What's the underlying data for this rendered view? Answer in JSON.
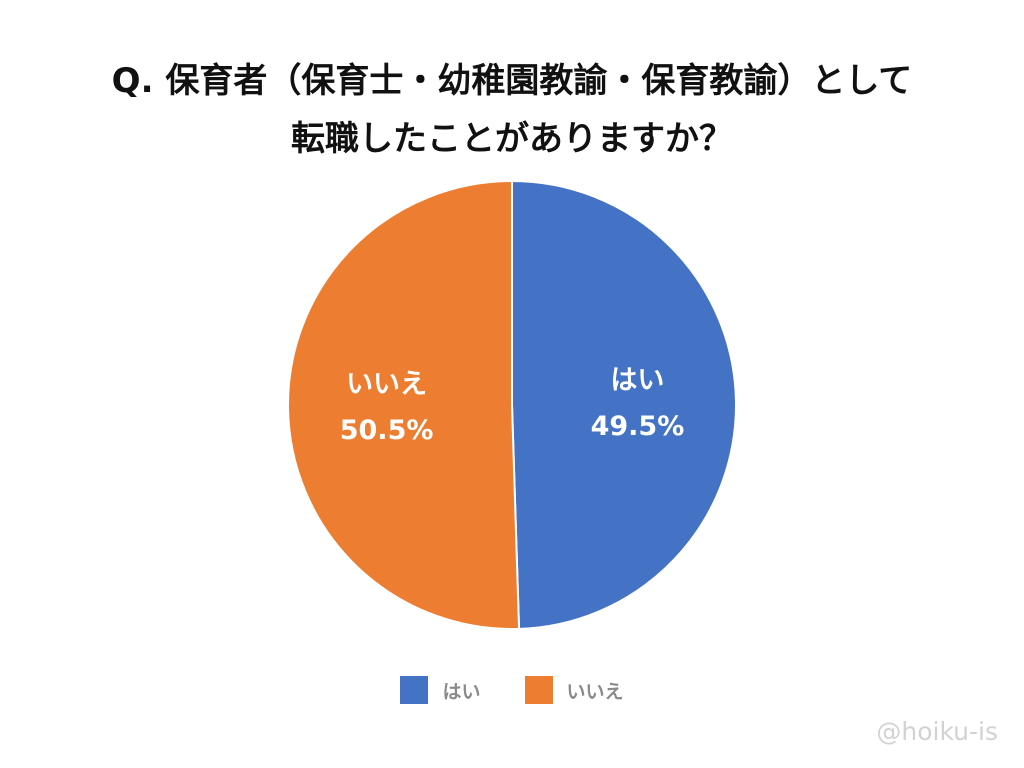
{
  "chart_data": {
    "type": "pie",
    "title_lines": [
      "Q. 保育者（保育士・幼稚園教諭・保育教諭）として",
      "転職したことがありますか？"
    ],
    "slices": [
      {
        "label": "はい",
        "value": 49.5,
        "value_text": "49.5%",
        "color": "#4472C4"
      },
      {
        "label": "いいえ",
        "value": 50.5,
        "value_text": "50.5%",
        "color": "#ED7D31"
      }
    ],
    "start_angle_deg": 0,
    "direction": "clockwise",
    "legend_position": "bottom"
  },
  "watermark": "@hoiku-is"
}
